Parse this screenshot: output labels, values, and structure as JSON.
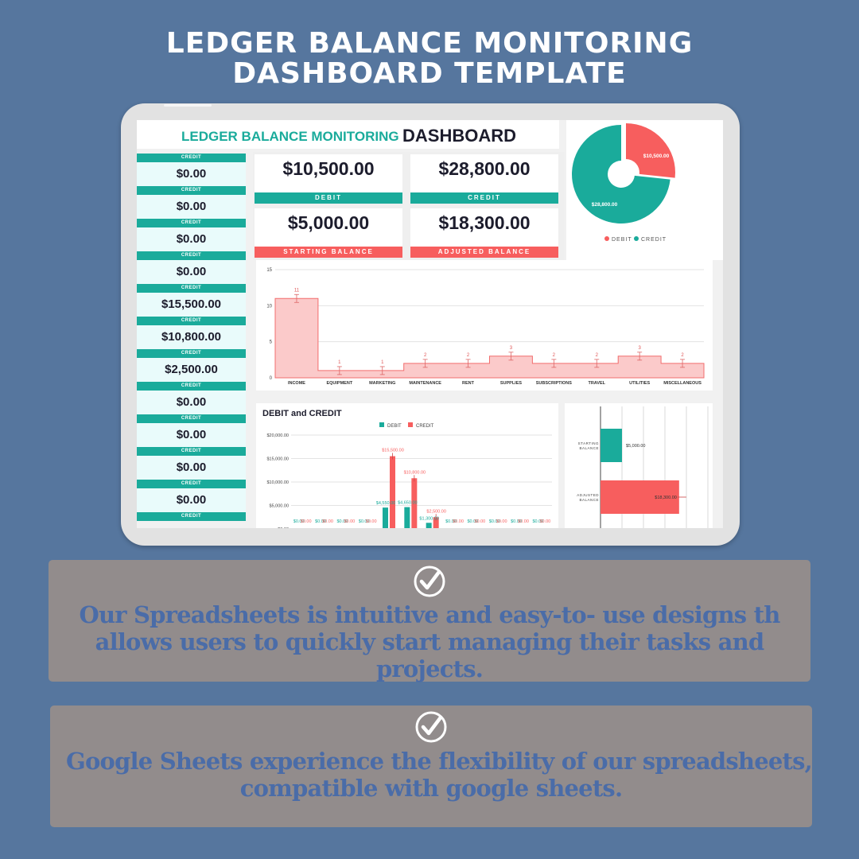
{
  "page": {
    "title_line1": "LEDGER BALANCE MONITORING",
    "title_line2": "DASHBOARD TEMPLATE"
  },
  "dashboard": {
    "title_teal": "LEDGER BALANCE MONITORING",
    "title_dark": "DASHBOARD",
    "credit_label": "CREDIT",
    "credit_values": [
      "$0.00",
      "$0.00",
      "$0.00",
      "$0.00",
      "$15,500.00",
      "$10,800.00",
      "$2,500.00",
      "$0.00",
      "$0.00",
      "$0.00",
      "$0.00"
    ],
    "kpis": [
      {
        "value": "$10,500.00",
        "label": "DEBIT",
        "color": "#1aab9b"
      },
      {
        "value": "$28,800.00",
        "label": "CREDIT",
        "color": "#1aab9b"
      },
      {
        "value": "$5,000.00",
        "label": "STARTING BALANCE",
        "color": "#f75e5e"
      },
      {
        "value": "$18,300.00",
        "label": "ADJUSTED BALANCE",
        "color": "#f75e5e"
      }
    ]
  },
  "colors": {
    "teal": "#1aab9b",
    "coral": "#f75e5e",
    "background": "#56769e",
    "feature_text": "#4a6ca8"
  },
  "chart_data": [
    {
      "type": "pie",
      "slices": [
        {
          "name": "DEBIT",
          "value": 10500,
          "label": "$10,500.00"
        },
        {
          "name": "CREDIT",
          "value": 28800,
          "label": "$28,800.00"
        }
      ],
      "legend": [
        "DEBIT",
        "CREDIT"
      ],
      "legend_position": "bottom"
    },
    {
      "type": "area",
      "categories": [
        "INCOME",
        "EQUIPMENT",
        "MARKETING",
        "MAINTENANCE",
        "RENT",
        "SUPPLIES",
        "SUBSCRIPTIONS",
        "TRAVEL",
        "UTILITIES",
        "MISCELLANEOUS"
      ],
      "values": [
        11,
        1,
        1,
        2,
        2,
        3,
        2,
        2,
        3,
        2
      ],
      "data_labels": [
        "11",
        "1",
        "1",
        "2",
        "2",
        "3",
        "2",
        "2",
        "3",
        "2"
      ],
      "ylim": [
        0,
        15
      ],
      "yticks": [
        "0",
        "5",
        "10",
        "15"
      ],
      "grid": true
    },
    {
      "type": "bar",
      "title": "DEBIT and CREDIT",
      "legend": [
        "DEBIT",
        "CREDIT"
      ],
      "legend_position": "top",
      "yticks": [
        "$0.00",
        "$5,000.00",
        "$10,000.00",
        "$15,000.00",
        "$20,000.00"
      ],
      "ylim": [
        0,
        20000
      ],
      "series": [
        {
          "name": "DEBIT",
          "values": [
            0,
            0,
            0,
            0,
            4550,
            4650,
            1300,
            0,
            0,
            0,
            0,
            0
          ],
          "labels": [
            "$0.00",
            "$0.00",
            "$0.00",
            "$0.00",
            "$4,550.00",
            "$4,650.00",
            "$1,300.00",
            "$0.00",
            "$0.00",
            "$0.00",
            "$0.00",
            "$0.00"
          ]
        },
        {
          "name": "CREDIT",
          "values": [
            0,
            0,
            0,
            0,
            15500,
            10800,
            2500,
            0,
            0,
            0,
            0,
            0
          ],
          "labels": [
            "$0.00",
            "$0.00",
            "$0.00",
            "$0.00",
            "$15,500.00",
            "$10,800.00",
            "$2,500.00",
            "$0.00",
            "$0.00",
            "$0.00",
            "$0.00",
            "$0.00"
          ]
        }
      ]
    },
    {
      "type": "bar",
      "orientation": "horizontal",
      "categories": [
        "STARTING BALANCE",
        "ADJUSTED BALANCE"
      ],
      "values": [
        5000,
        18300
      ],
      "labels": [
        "$5,000.00",
        "$18,300.00"
      ],
      "colors": [
        "#1aab9b",
        "#f75e5e"
      ]
    }
  ],
  "features": [
    {
      "line1": "Our Spreadsheets is intuitive and easy-to- use designs th",
      "line2": "allows users to quickly start managing their tasks and",
      "line3": "projects."
    },
    {
      "line1": "Google Sheets experience the flexibility of our spreadsheets,",
      "line2": "compatible with google sheets."
    }
  ]
}
